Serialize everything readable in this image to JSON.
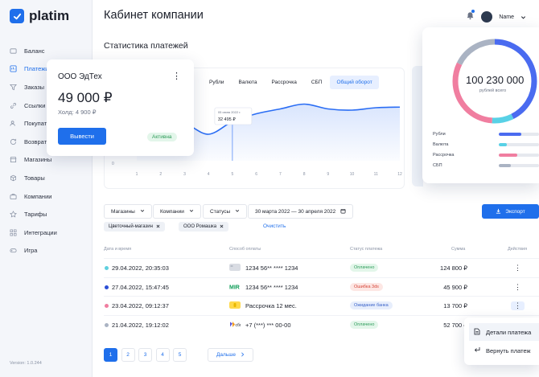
{
  "app": {
    "name": "platim",
    "version": "Version: 1.0.244"
  },
  "sidebar": {
    "items": [
      {
        "label": "Баланс",
        "icon": "wallet-icon"
      },
      {
        "label": "Платежи",
        "icon": "payments-icon",
        "active": true
      },
      {
        "label": "Заказы",
        "icon": "filter-icon"
      },
      {
        "label": "Ссылки",
        "icon": "link-icon"
      },
      {
        "label": "Покупатели",
        "icon": "users-icon"
      },
      {
        "label": "Возвраты",
        "icon": "return-icon"
      },
      {
        "label": "Магазины",
        "icon": "shop-icon"
      },
      {
        "label": "Товары",
        "icon": "box-icon"
      },
      {
        "label": "Компании",
        "icon": "briefcase-icon"
      },
      {
        "label": "Тарифы",
        "icon": "star-icon"
      },
      {
        "label": "Интеграции",
        "icon": "grid-icon"
      },
      {
        "label": "Игра",
        "icon": "gamepad-icon"
      }
    ]
  },
  "header": {
    "title": "Кабинет компании",
    "user": "Name"
  },
  "stats": {
    "title": "Статистика платежей",
    "tabs": [
      "Рубли",
      "Валюта",
      "Рассрочка",
      "СБП",
      "Общий оборот"
    ],
    "active_tab": 4,
    "tooltip": {
      "date": "05 июня 2022 г.",
      "value": "32 495 ₽"
    },
    "y_label": "0",
    "x_ticks": [
      "1",
      "2",
      "3",
      "4",
      "5",
      "6",
      "7",
      "8",
      "9",
      "10",
      "11",
      "12"
    ]
  },
  "chart_data": {
    "type": "area",
    "x": [
      1,
      2,
      3,
      4,
      5,
      6,
      7,
      8,
      9,
      10,
      11,
      12
    ],
    "series": [
      {
        "values": [
          27000,
          23000,
          30000,
          22000,
          32495,
          39000,
          43000,
          47000,
          43000,
          42000,
          44000,
          44500
        ]
      }
    ],
    "ylim": [
      0,
      60000
    ],
    "grid": false,
    "color": "#2a6df4"
  },
  "company_card": {
    "name": "ООО ЭдТех",
    "amount": "49 000 ₽",
    "hold": "Холд: 4 900 ₽",
    "withdraw": "Вывести",
    "status": "Активна"
  },
  "total_card": {
    "amount": "100 230 000",
    "caption": "рублей всего",
    "legend": [
      {
        "label": "Рубли",
        "color": "#4a6bf0",
        "share": 0.55
      },
      {
        "label": "Валюта",
        "color": "#58d1e6",
        "share": 0.2
      },
      {
        "label": "Рассрочка",
        "color": "#f07ea0",
        "share": 0.45
      },
      {
        "label": "СБП",
        "color": "#aab3c3",
        "share": 0.3
      }
    ]
  },
  "filters": {
    "shops": "Магазины",
    "companies": "Компании",
    "statuses": "Статусы",
    "date_range": "30 марта 2022 — 30 апреля 2022",
    "export": "Экспорт",
    "chips": [
      "Цветочный-магазин",
      "ООО Ромашка"
    ],
    "clear": "Очистить"
  },
  "table": {
    "headers": [
      "Дата и время",
      "Способ оплаты",
      "Статус платежа",
      "Сумма",
      "Действия"
    ],
    "rows": [
      {
        "date": "29.04.2022, 20:35:03",
        "dot": "#5fd0de",
        "method": "1234 56** **** 1234",
        "method_icon": "card-icon",
        "status": "Оплачено",
        "status_kind": "ok",
        "sum": "124 800 ₽"
      },
      {
        "date": "27.04.2022, 15:47:45",
        "dot": "#2c4fd6",
        "method": "1234 56** **** 1234",
        "method_icon": "mir-icon",
        "status": "Ошибка 3ds",
        "status_kind": "error",
        "sum": "45 900 ₽"
      },
      {
        "date": "23.04.2022, 09:12:37",
        "dot": "#f07ea0",
        "method": "Рассрочка 12 мес.",
        "method_icon": "installment-icon",
        "status": "Ожидание банка",
        "status_kind": "wait",
        "sum": "13 700 ₽"
      },
      {
        "date": "21.04.2022, 19:12:02",
        "dot": "#aab3c3",
        "method": "+7 (***) *** 00-00",
        "method_icon": "sbp-icon",
        "status": "Оплачено",
        "status_kind": "ok",
        "sum": "52 700 ₽"
      }
    ]
  },
  "context_menu": {
    "details": "Детали платежа",
    "refund": "Вернуть платеж"
  },
  "pagination": {
    "pages": [
      "1",
      "2",
      "3",
      "4",
      "5"
    ],
    "active": 0,
    "next": "Дальше"
  }
}
